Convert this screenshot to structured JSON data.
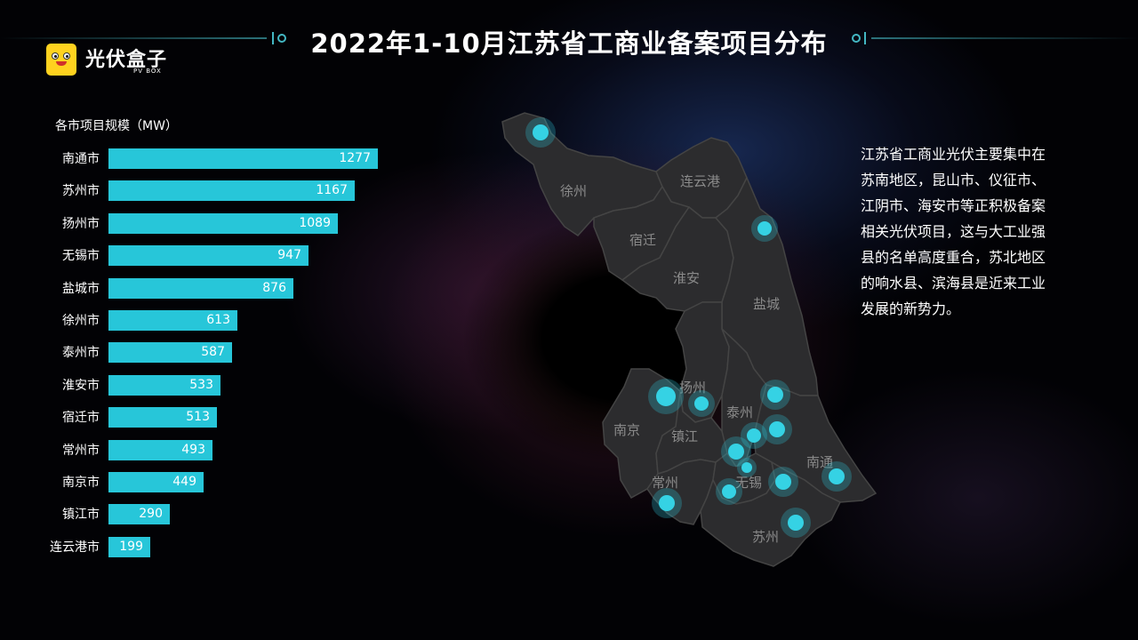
{
  "title": "2022年1-10月江苏省工商业备案项目分布",
  "logo": {
    "text": "光伏盒子",
    "sub": "PV BOX"
  },
  "chart_data": {
    "type": "bar",
    "orientation": "horizontal",
    "title": "各市项目规模（MW）",
    "categories": [
      "南通市",
      "苏州市",
      "扬州市",
      "无锡市",
      "盐城市",
      "徐州市",
      "泰州市",
      "淮安市",
      "宿迁市",
      "常州市",
      "南京市",
      "镇江市",
      "连云港市"
    ],
    "values": [
      1277,
      1167,
      1089,
      947,
      876,
      613,
      587,
      533,
      513,
      493,
      449,
      290,
      199
    ],
    "color": "#27c6d9",
    "grid": false
  },
  "map": {
    "regions": [
      "徐州",
      "连云港",
      "宿迁",
      "淮安",
      "盐城",
      "扬州",
      "泰州",
      "南京",
      "镇江",
      "南通",
      "常州",
      "无锡",
      "苏州"
    ],
    "marker_color": "#35d2e4"
  },
  "description": "江苏省工商业光伏主要集中在苏南地区，昆山市、仪征市、江阴市、海安市等正积极备案相关光伏项目，这与大工业强县的名单高度重合，苏北地区的响水县、滨海县是近来工业发展的新势力。"
}
